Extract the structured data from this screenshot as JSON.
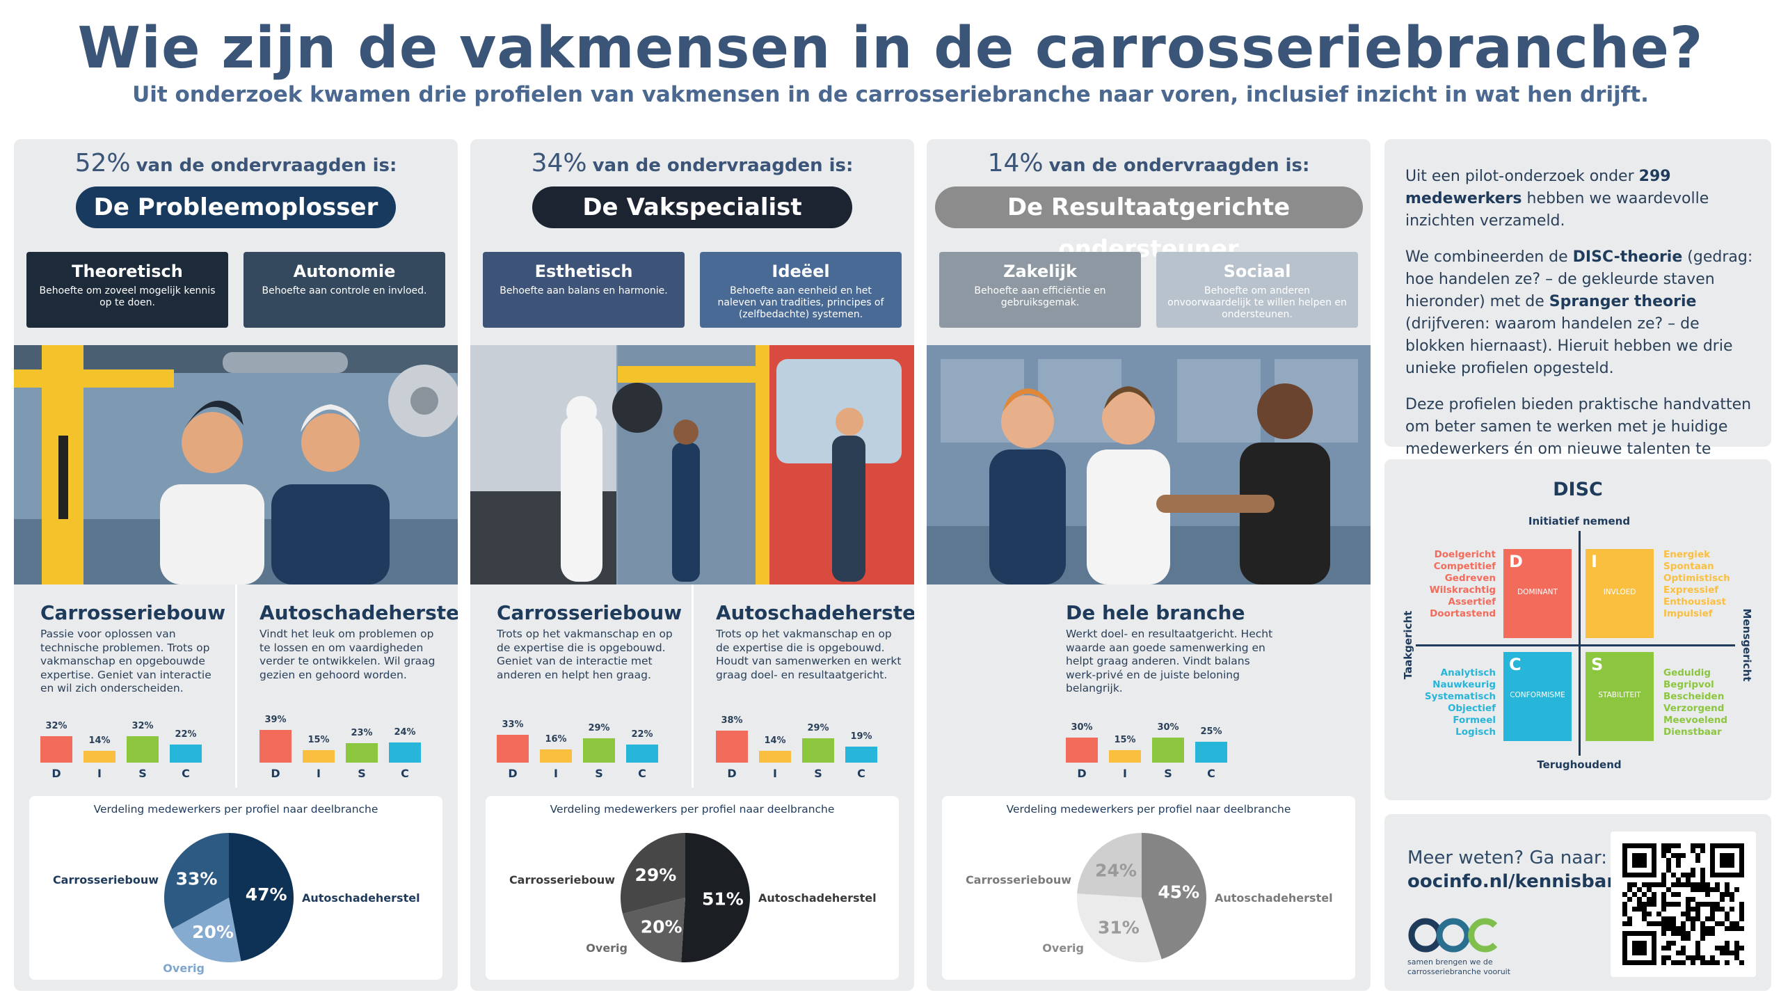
{
  "header": {
    "title": "Wie zijn de vakmensen in de carrosseriebranche?",
    "subtitle": "Uit onderzoek kwamen drie profielen van vakmensen in de carrosseriebranche naar voren, inclusief inzicht in wat hen drijft."
  },
  "disc_colors": [
    "#f26b5b",
    "#fbbf3f",
    "#8cc63f",
    "#27b5d9"
  ],
  "profiles": [
    {
      "share": "52%",
      "intro": "van de ondervraagden is:",
      "name": "De Probleemoplosser",
      "traits": [
        {
          "title": "Theoretisch",
          "text": "Behoefte om zoveel mogelijk kennis op te doen."
        },
        {
          "title": "Autonomie",
          "text": "Behoefte aan controle en invloed."
        }
      ],
      "columns": [
        {
          "heading": "Carrosseriebouw",
          "text": "Passie voor oplossen van technische problemen. Trots op vakmanschap en opgebouwde expertise. Geniet van interactie en wil zich onderscheiden.",
          "disc": {
            "categories": [
              "D",
              "I",
              "S",
              "C"
            ],
            "values": [
              32,
              14,
              32,
              22
            ],
            "value_labels": [
              "32%",
              "14%",
              "32%",
              "22%"
            ]
          }
        },
        {
          "heading": "Autoschadeherstel",
          "text": "Vindt het leuk om problemen op te lossen en om vaardigheden verder te ontwikkelen. Wil graag gezien en gehoord worden.",
          "disc": {
            "categories": [
              "D",
              "I",
              "S",
              "C"
            ],
            "values": [
              39,
              15,
              23,
              24
            ],
            "value_labels": [
              "39%",
              "15%",
              "23%",
              "24%"
            ]
          }
        }
      ],
      "pie": {
        "title": "Verdeling medewerkers per profiel naar deelbranche",
        "categories": [
          "Autoschadeherstel",
          "Overig",
          "Carrosseriebouw"
        ],
        "values": [
          47,
          20,
          33
        ],
        "value_labels": [
          "47%",
          "20%",
          "33%"
        ],
        "colors": [
          "#0e3255",
          "#86abd0",
          "#2d5a82"
        ]
      }
    },
    {
      "share": "34%",
      "intro": "van de ondervraagden is:",
      "name": "De Vakspecialist",
      "traits": [
        {
          "title": "Esthetisch",
          "text": "Behoefte aan balans en harmonie."
        },
        {
          "title": "Ideëel",
          "text": "Behoefte aan eenheid en het naleven van tradities, principes of (zelfbedachte) systemen."
        }
      ],
      "columns": [
        {
          "heading": "Carrosseriebouw",
          "text": "Trots op het vakmanschap en op de expertise die is opgebouwd. Geniet van de interactie met anderen en helpt hen graag.",
          "disc": {
            "categories": [
              "D",
              "I",
              "S",
              "C"
            ],
            "values": [
              33,
              16,
              29,
              22
            ],
            "value_labels": [
              "33%",
              "16%",
              "29%",
              "22%"
            ]
          }
        },
        {
          "heading": "Autoschadeherstel",
          "text": "Trots op het vakmanschap en op de expertise die is opgebouwd. Houdt van samenwerken en werkt graag doel- en resultaatgericht.",
          "disc": {
            "categories": [
              "D",
              "I",
              "S",
              "C"
            ],
            "values": [
              38,
              14,
              29,
              19
            ],
            "value_labels": [
              "38%",
              "14%",
              "29%",
              "19%"
            ]
          }
        }
      ],
      "pie": {
        "title": "Verdeling medewerkers per profiel naar deelbranche",
        "categories": [
          "Autoschadeherstel",
          "Overig",
          "Carrosseriebouw"
        ],
        "values": [
          51,
          20,
          29
        ],
        "value_labels": [
          "51%",
          "20%",
          "29%"
        ],
        "colors": [
          "#1b1f24",
          "#5e5e5e",
          "#474747"
        ]
      }
    },
    {
      "share": "14%",
      "intro": "van de ondervraagden is:",
      "name": "De Resultaatgerichte ondersteuner",
      "traits": [
        {
          "title": "Zakelijk",
          "text": "Behoefte aan efficiëntie en gebruiksgemak."
        },
        {
          "title": "Sociaal",
          "text": "Behoefte om anderen onvoorwaardelijk te willen helpen en ondersteunen."
        }
      ],
      "columns": [
        {
          "heading": "De hele branche",
          "text": "Werkt doel- en resultaatgericht. Hecht waarde aan goede samenwerking en helpt graag anderen. Vindt balans werk-privé en de juiste beloning belangrijk.",
          "disc": {
            "categories": [
              "D",
              "I",
              "S",
              "C"
            ],
            "values": [
              30,
              15,
              30,
              25
            ],
            "value_labels": [
              "30%",
              "15%",
              "30%",
              "25%"
            ]
          }
        }
      ],
      "pie": {
        "title": "Verdeling medewerkers per profiel naar deelbranche",
        "categories": [
          "Autoschadeherstel",
          "Overig",
          "Carrosseriebouw"
        ],
        "values": [
          45,
          31,
          24
        ],
        "value_labels": [
          "45%",
          "31%",
          "24%"
        ],
        "colors": [
          "#858585",
          "#ebebeb",
          "#cfcfcf"
        ]
      }
    }
  ],
  "side": {
    "paragraphs": [
      [
        {
          "text": "Uit een pilot-onderzoek onder "
        },
        {
          "text": "299 medewerkers",
          "bold": true
        },
        {
          "text": " hebben we waardevolle inzichten verzameld."
        }
      ],
      [
        {
          "text": "We combineerden de "
        },
        {
          "text": "DISC-theorie",
          "bold": true
        },
        {
          "text": " (gedrag: hoe handelen ze? – de gekleurde staven hieronder) met de "
        },
        {
          "text": "Spranger theorie",
          "bold": true
        },
        {
          "text": " (drijfveren: waarom handelen ze? – de blokken hiernaast). Hieruit hebben we drie unieke profielen opgesteld."
        }
      ],
      [
        {
          "text": "Deze profielen bieden praktische handvatten om beter samen te werken met je huidige medewerkers én om nieuwe talenten te vinden."
        }
      ]
    ]
  },
  "disc": {
    "title": "DISC",
    "top": "Initiatief nemend",
    "bottom": "Terughoudend",
    "left": "Taakgericht",
    "right": "Mensgericht",
    "quadrants": [
      {
        "letter": "D",
        "name": "DOMINANT",
        "color": "#f26b5b",
        "traits": [
          "Doelgericht",
          "Competitief",
          "Gedreven",
          "Wilskrachtig",
          "Assertief",
          "Doortastend"
        ]
      },
      {
        "letter": "I",
        "name": "INVLOED",
        "color": "#fbbf3f",
        "traits": [
          "Energiek",
          "Spontaan",
          "Optimistisch",
          "Expressief",
          "Enthousiast",
          "Impulsief"
        ]
      },
      {
        "letter": "C",
        "name": "CONFORMISME",
        "color": "#27b5d9",
        "traits": [
          "Analytisch",
          "Nauwkeurig",
          "Systematisch",
          "Objectief",
          "Formeel",
          "Logisch"
        ]
      },
      {
        "letter": "S",
        "name": "STABILITEIT",
        "color": "#8cc63f",
        "traits": [
          "Geduldig",
          "Begripvol",
          "Bescheiden",
          "Verzorgend",
          "Meevoelend",
          "Dienstbaar"
        ]
      }
    ]
  },
  "footer": {
    "cta": "Meer weten? Ga naar:",
    "link": "oocinfo.nl/kennisbank",
    "tagline": [
      "samen brengen we de",
      "carrosseriebranche vooruit"
    ]
  }
}
